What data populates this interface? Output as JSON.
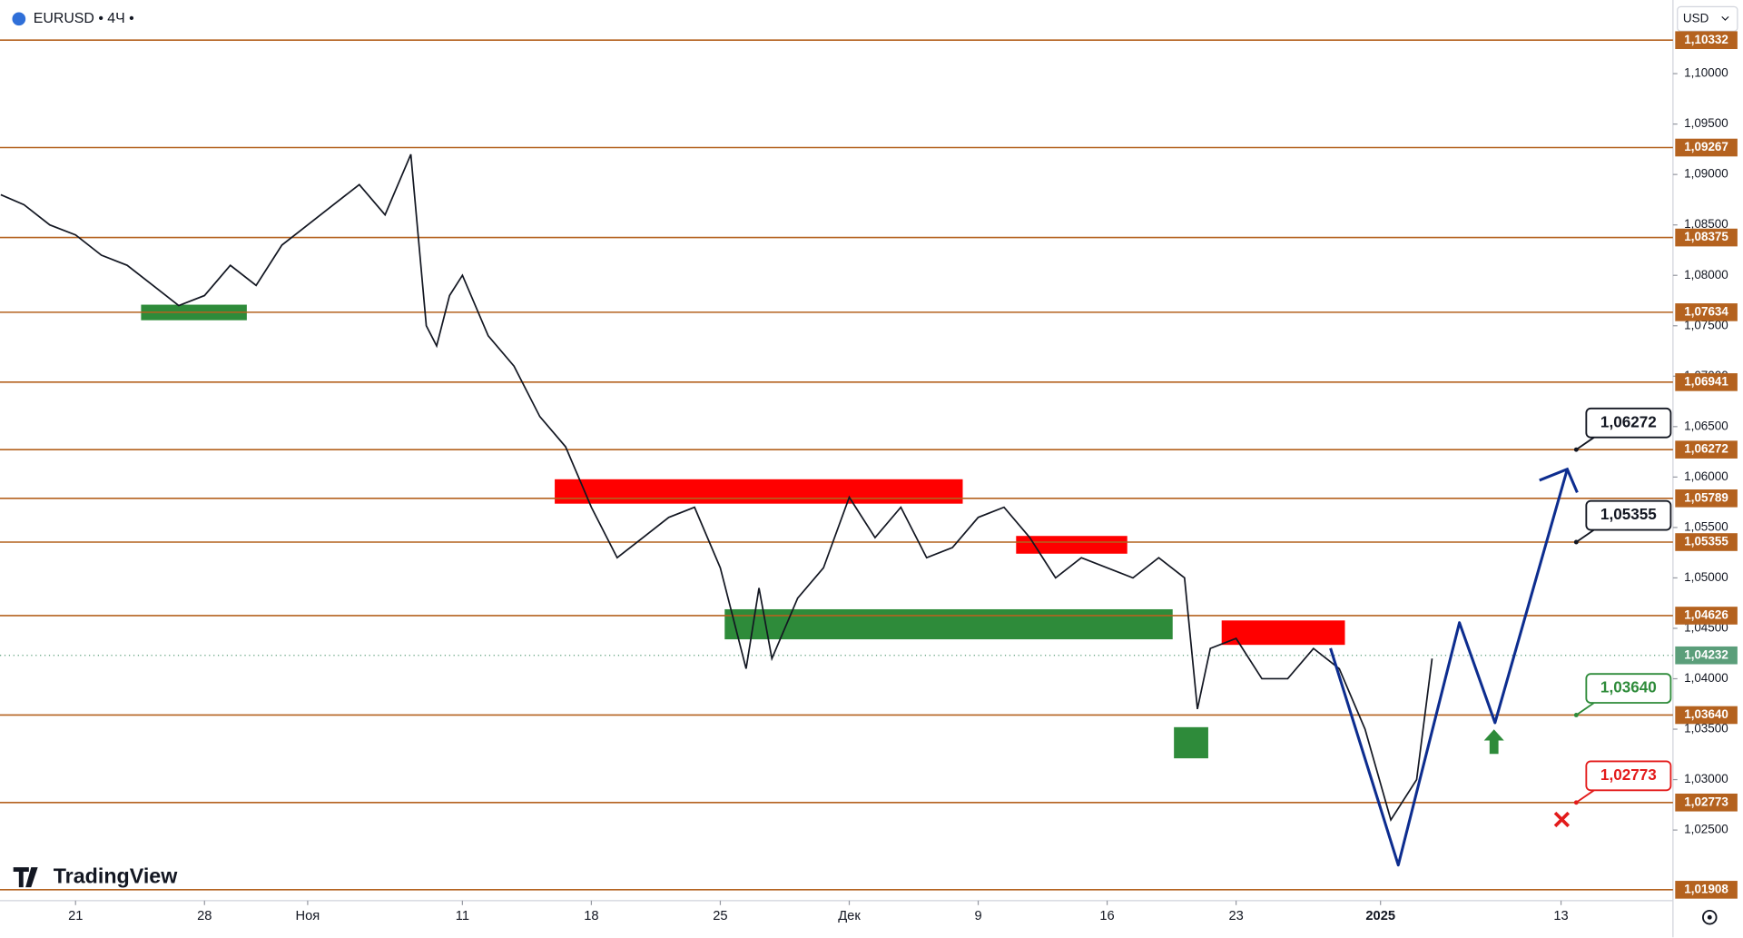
{
  "chart_data": {
    "type": "line",
    "symbol": "EURUSD • 4Ч •",
    "currency": "USD",
    "brand": "TradingView",
    "color": "#131722",
    "xlim": [
      -2.93,
      61.94
    ],
    "ylim": [
      1.018,
      1.1073
    ],
    "xticks": [
      {
        "value": 0,
        "label": "21"
      },
      {
        "value": 5,
        "label": "28"
      },
      {
        "value": 9,
        "label": "Ноя"
      },
      {
        "value": 15,
        "label": "11"
      },
      {
        "value": 20,
        "label": "18"
      },
      {
        "value": 25,
        "label": "25"
      },
      {
        "value": 30,
        "label": "Дек"
      },
      {
        "value": 35,
        "label": "9"
      },
      {
        "value": 40,
        "label": "16"
      },
      {
        "value": 45,
        "label": "23"
      },
      {
        "value": 50.6,
        "label": "2025"
      },
      {
        "value": 57.6,
        "label": "13"
      }
    ],
    "yticks": [
      {
        "value": 1.025,
        "label": "1,02500"
      },
      {
        "value": 1.03,
        "label": "1,03000"
      },
      {
        "value": 1.035,
        "label": "1,03500"
      },
      {
        "value": 1.04,
        "label": "1,04000"
      },
      {
        "value": 1.045,
        "label": "1,04500"
      },
      {
        "value": 1.05,
        "label": "1,05000"
      },
      {
        "value": 1.055,
        "label": "1,05500"
      },
      {
        "value": 1.06,
        "label": "1,06000"
      },
      {
        "value": 1.065,
        "label": "1,06500"
      },
      {
        "value": 1.07,
        "label": "1,07000"
      },
      {
        "value": 1.075,
        "label": "1,07500"
      },
      {
        "value": 1.08,
        "label": "1,08000"
      },
      {
        "value": 1.085,
        "label": "1,08500"
      },
      {
        "value": 1.09,
        "label": "1,09000"
      },
      {
        "value": 1.095,
        "label": "1,09500"
      },
      {
        "value": 1.1,
        "label": "1,10000"
      }
    ],
    "x": [
      -2.9,
      -2,
      -1,
      0,
      1,
      2,
      3,
      4,
      5,
      6,
      7,
      8,
      9,
      10,
      11,
      12,
      13,
      13.6,
      14,
      14.5,
      15,
      16,
      17,
      18,
      19,
      20,
      21,
      22,
      23,
      24,
      25,
      26,
      26.5,
      27,
      28,
      29,
      30,
      31,
      32,
      33,
      34,
      35,
      36,
      37,
      38,
      39,
      40,
      41,
      42,
      43,
      43.5,
      44,
      45,
      46,
      47,
      48,
      49,
      50,
      51,
      52,
      52.6
    ],
    "values": [
      1.088,
      1.087,
      1.085,
      1.084,
      1.082,
      1.081,
      1.079,
      1.077,
      1.078,
      1.081,
      1.079,
      1.083,
      1.085,
      1.087,
      1.089,
      1.086,
      1.092,
      1.075,
      1.073,
      1.078,
      1.08,
      1.074,
      1.071,
      1.066,
      1.063,
      1.057,
      1.052,
      1.054,
      1.056,
      1.057,
      1.051,
      1.041,
      1.049,
      1.042,
      1.048,
      1.051,
      1.058,
      1.054,
      1.057,
      1.052,
      1.053,
      1.056,
      1.057,
      1.054,
      1.05,
      1.052,
      1.051,
      1.05,
      1.052,
      1.05,
      1.037,
      1.043,
      1.044,
      1.04,
      1.04,
      1.043,
      1.041,
      1.035,
      1.026,
      1.03,
      1.042
    ],
    "level_color": "#b4621f",
    "levels": [
      {
        "value": 1.10332,
        "label": "1,10332"
      },
      {
        "value": 1.09267,
        "label": "1,09267"
      },
      {
        "value": 1.08375,
        "label": "1,08375"
      },
      {
        "value": 1.07634,
        "label": "1,07634"
      },
      {
        "value": 1.06941,
        "label": "1,06941"
      },
      {
        "value": 1.06272,
        "label": "1,06272"
      },
      {
        "value": 1.05789,
        "label": "1,05789"
      },
      {
        "value": 1.05355,
        "label": "1,05355"
      },
      {
        "value": 1.04626,
        "label": "1,04626"
      },
      {
        "value": 1.0364,
        "label": "1,03640"
      },
      {
        "value": 1.02773,
        "label": "1,02773"
      },
      {
        "value": 1.01908,
        "label": "1,01908"
      }
    ],
    "last_price": {
      "value": 1.04232,
      "label": "1,04232",
      "color": "#5b9e7a"
    },
    "zones": [
      {
        "x": [
          18.58,
          34.4
        ],
        "y": [
          1.05736,
          1.05978
        ],
        "color": "#ff0000"
      },
      {
        "x": [
          36.47,
          40.78
        ],
        "y": [
          1.0524,
          1.05416
        ],
        "color": "#ff0000"
      },
      {
        "x": [
          44.44,
          49.22
        ],
        "y": [
          1.04336,
          1.04578
        ],
        "color": "#ff0000"
      },
      {
        "x": [
          2.54,
          6.64
        ],
        "y": [
          1.07555,
          1.07709
        ],
        "color": "#2e8b3a"
      },
      {
        "x": [
          25.17,
          42.54
        ],
        "y": [
          1.04391,
          1.04689
        ],
        "color": "#2e8b3a"
      },
      {
        "x": [
          42.59,
          43.92
        ],
        "y": [
          1.03211,
          1.0352
        ],
        "color": "#2e8b3a"
      }
    ],
    "projection": {
      "color": "#0d2d8f",
      "x": [
        48.66,
        51.29,
        53.66,
        55.04,
        57.84
      ],
      "values": [
        1.04303,
        1.02153,
        1.04556,
        1.03564,
        1.06078
      ]
    },
    "callouts": [
      {
        "value": 1.06272,
        "label": "1,06272",
        "color": "#131722"
      },
      {
        "value": 1.05355,
        "label": "1,05355",
        "color": "#131722"
      },
      {
        "value": 1.0364,
        "label": "1,03640",
        "color": "#2e8b3a"
      },
      {
        "value": 1.02773,
        "label": "1,02773",
        "color": "#e31b1b"
      }
    ]
  }
}
